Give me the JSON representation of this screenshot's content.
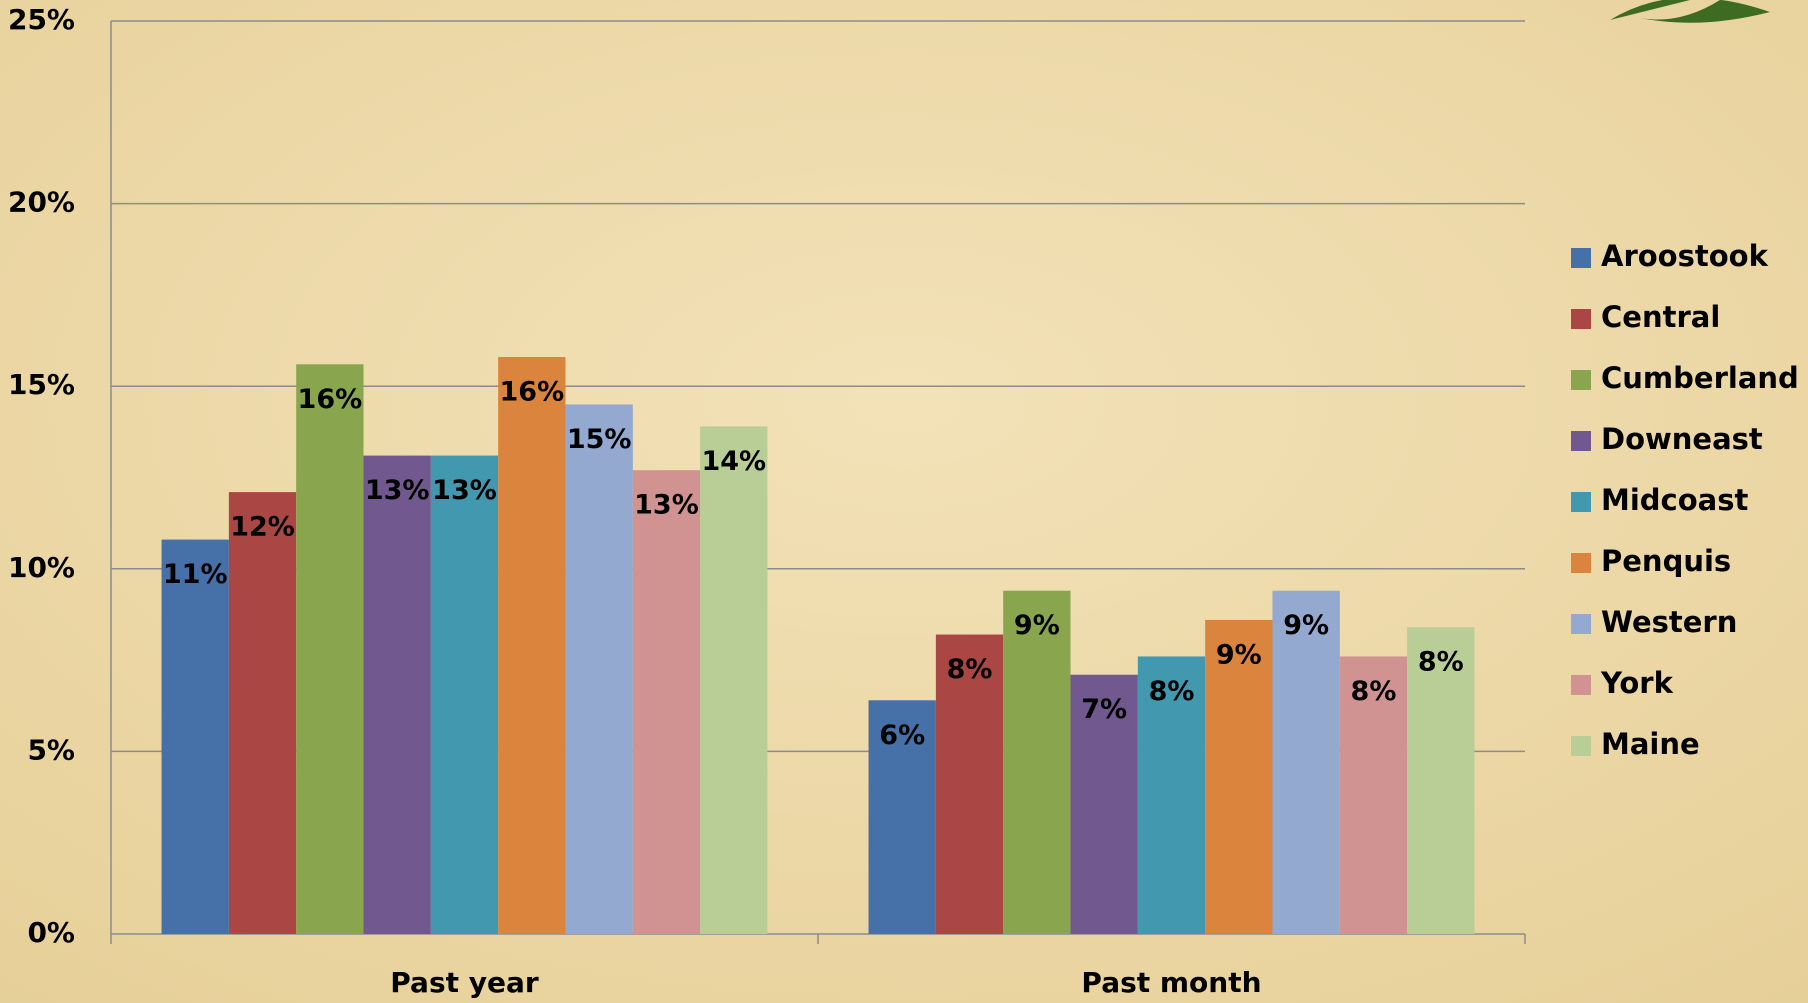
{
  "chart_data": {
    "type": "bar",
    "categories": [
      "Past year",
      "Past month"
    ],
    "series": [
      {
        "name": "Aroostook",
        "color": "#4571a8",
        "values": [
          10.8,
          6.4
        ],
        "value_labels": [
          "11%",
          "6%"
        ]
      },
      {
        "name": "Central",
        "color": "#aa4644",
        "values": [
          12.1,
          8.2
        ],
        "value_labels": [
          "12%",
          "8%"
        ]
      },
      {
        "name": "Cumberland",
        "color": "#89a54e",
        "values": [
          15.6,
          9.4
        ],
        "value_labels": [
          "16%",
          "9%"
        ]
      },
      {
        "name": "Downeast",
        "color": "#71588f",
        "values": [
          13.1,
          7.1
        ],
        "value_labels": [
          "13%",
          "7%"
        ]
      },
      {
        "name": "Midcoast",
        "color": "#4198af",
        "values": [
          13.1,
          7.6
        ],
        "value_labels": [
          "13%",
          "8%"
        ]
      },
      {
        "name": "Penquis",
        "color": "#db843d",
        "values": [
          15.8,
          8.6
        ],
        "value_labels": [
          "16%",
          "9%"
        ]
      },
      {
        "name": "Western",
        "color": "#93a9cf",
        "values": [
          14.5,
          9.4
        ],
        "value_labels": [
          "15%",
          "9%"
        ]
      },
      {
        "name": "York",
        "color": "#d19392",
        "values": [
          12.7,
          7.6
        ],
        "value_labels": [
          "13%",
          "8%"
        ]
      },
      {
        "name": "Maine",
        "color": "#b9cd96",
        "values": [
          13.9,
          8.4
        ],
        "value_labels": [
          "14%",
          "8%"
        ]
      }
    ],
    "ylim": [
      0,
      25
    ],
    "yticks": [
      {
        "value": 0,
        "label": "0%"
      },
      {
        "value": 5,
        "label": "5%"
      },
      {
        "value": 10,
        "label": "10%"
      },
      {
        "value": 15,
        "label": "15%"
      },
      {
        "value": 20,
        "label": "20%"
      },
      {
        "value": 25,
        "label": "25%"
      }
    ],
    "grid": true,
    "legend": "right"
  }
}
